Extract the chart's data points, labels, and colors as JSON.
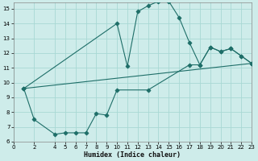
{
  "xlabel": "Humidex (Indice chaleur)",
  "bg_color": "#ceecea",
  "grid_color": "#a8d8d4",
  "line_color": "#1e6e68",
  "xlim": [
    0,
    23
  ],
  "ylim": [
    6,
    15.4
  ],
  "xticks": [
    0,
    2,
    4,
    5,
    6,
    7,
    8,
    9,
    10,
    11,
    12,
    13,
    14,
    15,
    16,
    17,
    18,
    19,
    20,
    21,
    22,
    23
  ],
  "yticks": [
    6,
    7,
    8,
    9,
    10,
    11,
    12,
    13,
    14,
    15
  ],
  "line1_x": [
    1,
    10,
    11,
    12,
    13,
    14,
    15,
    16,
    17,
    18,
    19,
    20,
    21,
    22,
    23
  ],
  "line1_y": [
    9.6,
    14.0,
    11.1,
    14.8,
    15.2,
    15.5,
    15.5,
    14.4,
    12.7,
    11.2,
    12.4,
    12.1,
    12.3,
    11.8,
    11.3
  ],
  "line2_x": [
    1,
    2,
    4,
    5,
    6,
    7,
    8,
    9,
    10,
    13,
    17,
    18,
    19,
    20,
    21,
    22,
    23
  ],
  "line2_y": [
    9.6,
    7.5,
    6.5,
    6.6,
    6.6,
    6.6,
    7.9,
    7.8,
    9.5,
    9.5,
    11.2,
    11.2,
    12.4,
    12.1,
    12.3,
    11.8,
    11.3
  ],
  "line3_x": [
    1,
    23
  ],
  "line3_y": [
    9.6,
    11.3
  ]
}
